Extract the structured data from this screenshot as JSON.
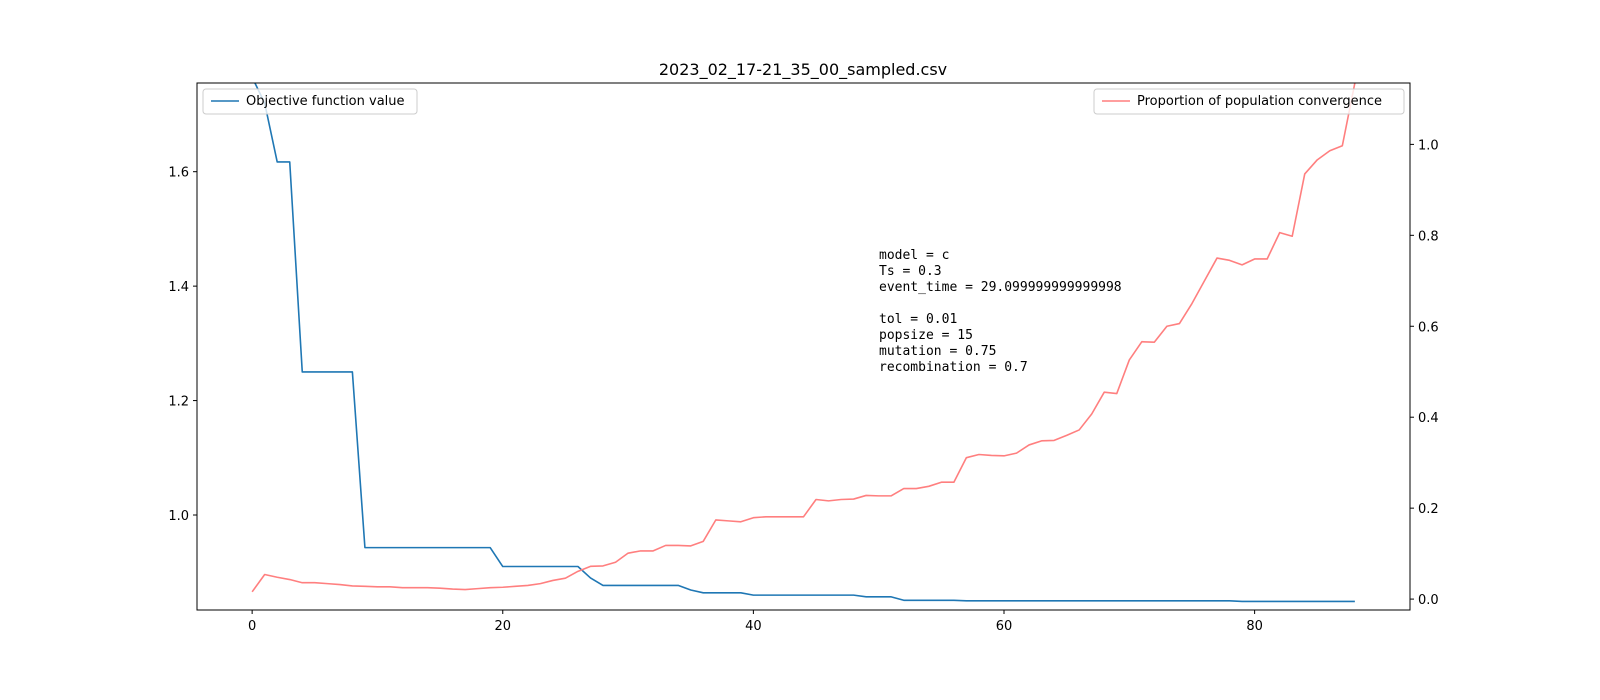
{
  "colors": {
    "objective": "#1f77b4",
    "convergence": "#ff7f7f"
  },
  "chart_data": {
    "type": "line",
    "title": "2023_02_17-21_35_00_sampled.csv",
    "xlabel": "",
    "ylabel": "",
    "y2label": "",
    "xlim": [
      -4.4,
      92.4
    ],
    "ylim": [
      0.834,
      1.755
    ],
    "y2lim": [
      -0.024,
      1.135
    ],
    "x_ticks": [
      0,
      20,
      40,
      60,
      80
    ],
    "y_ticks": [
      1.0,
      1.2,
      1.4,
      1.6
    ],
    "y2_ticks": [
      0.0,
      0.2,
      0.4,
      0.6,
      0.8,
      1.0
    ],
    "legend_left_placement": "upper-left",
    "legend_right_placement": "upper-right",
    "series": [
      {
        "name": "Objective function value",
        "axis": "left",
        "color": "#1f77b4",
        "x": [
          0,
          1,
          2,
          3,
          4,
          5,
          6,
          7,
          8,
          9,
          10,
          11,
          12,
          13,
          14,
          15,
          16,
          17,
          18,
          19,
          20,
          21,
          22,
          23,
          24,
          25,
          26,
          27,
          28,
          29,
          30,
          31,
          32,
          33,
          34,
          35,
          36,
          37,
          38,
          39,
          40,
          41,
          42,
          43,
          44,
          45,
          46,
          47,
          48,
          49,
          50,
          51,
          52,
          53,
          54,
          55,
          56,
          57,
          58,
          59,
          60,
          61,
          62,
          63,
          64,
          65,
          66,
          67,
          68,
          69,
          70,
          71,
          72,
          73,
          74,
          75,
          76,
          77,
          78,
          79,
          80,
          81,
          82,
          83,
          84,
          85,
          86,
          87,
          88
        ],
        "y": [
          1.765,
          1.72,
          1.617,
          1.617,
          1.25,
          1.25,
          1.25,
          1.25,
          1.25,
          0.943,
          0.943,
          0.943,
          0.943,
          0.943,
          0.943,
          0.943,
          0.943,
          0.943,
          0.943,
          0.943,
          0.91,
          0.91,
          0.91,
          0.91,
          0.91,
          0.91,
          0.91,
          0.89,
          0.877,
          0.877,
          0.877,
          0.877,
          0.877,
          0.877,
          0.877,
          0.869,
          0.864,
          0.864,
          0.864,
          0.864,
          0.86,
          0.86,
          0.86,
          0.86,
          0.86,
          0.86,
          0.86,
          0.86,
          0.86,
          0.857,
          0.857,
          0.857,
          0.851,
          0.851,
          0.851,
          0.851,
          0.851,
          0.85,
          0.85,
          0.85,
          0.85,
          0.85,
          0.85,
          0.85,
          0.85,
          0.85,
          0.85,
          0.85,
          0.85,
          0.85,
          0.85,
          0.85,
          0.85,
          0.85,
          0.85,
          0.85,
          0.85,
          0.85,
          0.85,
          0.849,
          0.849,
          0.849,
          0.849,
          0.849,
          0.849,
          0.849,
          0.849,
          0.849,
          0.849
        ]
      },
      {
        "name": "Proportion of population convergence",
        "axis": "right",
        "color": "#ff7f7f",
        "x": [
          0,
          1,
          2,
          3,
          4,
          5,
          6,
          7,
          8,
          9,
          10,
          11,
          12,
          13,
          14,
          15,
          16,
          17,
          18,
          19,
          20,
          21,
          22,
          23,
          24,
          25,
          26,
          27,
          28,
          29,
          30,
          31,
          32,
          33,
          34,
          35,
          36,
          37,
          38,
          39,
          40,
          41,
          42,
          43,
          44,
          45,
          46,
          47,
          48,
          49,
          50,
          51,
          52,
          53,
          54,
          55,
          56,
          57,
          58,
          59,
          60,
          61,
          62,
          63,
          64,
          65,
          66,
          67,
          68,
          69,
          70,
          71,
          72,
          73,
          74,
          75,
          76,
          77,
          78,
          79,
          80,
          81,
          82,
          83,
          84,
          85,
          86,
          87,
          88
        ],
        "y": [
          0.016,
          0.054,
          0.048,
          0.043,
          0.036,
          0.036,
          0.034,
          0.032,
          0.029,
          0.028,
          0.027,
          0.027,
          0.025,
          0.025,
          0.025,
          0.024,
          0.022,
          0.021,
          0.023,
          0.025,
          0.026,
          0.028,
          0.03,
          0.034,
          0.041,
          0.046,
          0.061,
          0.072,
          0.073,
          0.081,
          0.101,
          0.106,
          0.106,
          0.118,
          0.118,
          0.117,
          0.127,
          0.174,
          0.172,
          0.17,
          0.179,
          0.181,
          0.181,
          0.181,
          0.181,
          0.219,
          0.216,
          0.219,
          0.22,
          0.228,
          0.227,
          0.227,
          0.243,
          0.243,
          0.248,
          0.257,
          0.257,
          0.311,
          0.318,
          0.316,
          0.315,
          0.321,
          0.339,
          0.348,
          0.349,
          0.36,
          0.372,
          0.407,
          0.455,
          0.452,
          0.526,
          0.566,
          0.565,
          0.6,
          0.606,
          0.65,
          0.7,
          0.75,
          0.745,
          0.735,
          0.748,
          0.748,
          0.806,
          0.798,
          0.935,
          0.966,
          0.986,
          0.997,
          1.135
        ]
      }
    ],
    "annotation_lines": [
      "model = c",
      "Ts = 0.3",
      "event_time = 29.099999999999998",
      "",
      "tol = 0.01",
      "popsize = 15",
      "mutation = 0.75",
      "recombination = 0.7"
    ]
  }
}
